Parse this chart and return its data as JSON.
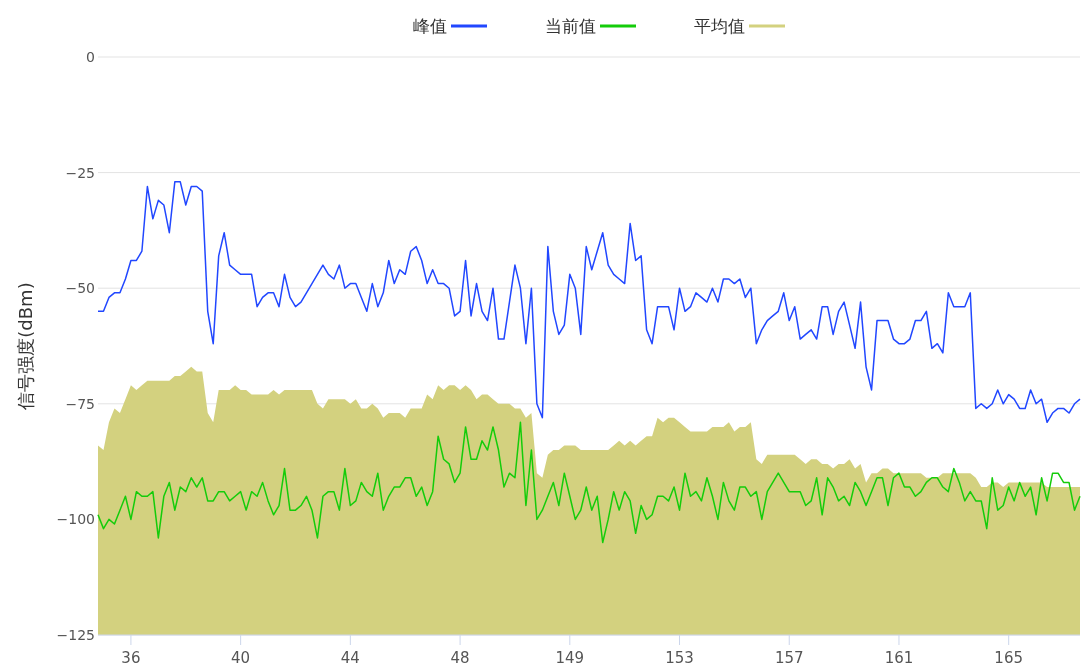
{
  "chart_data": {
    "type": "line",
    "ylabel": "信号强度(dBm)",
    "ylim": [
      -125,
      0
    ],
    "yticks": [
      -125,
      -100,
      -75,
      -50,
      -25,
      0
    ],
    "categories": [
      null,
      null,
      null,
      null,
      null,
      null,
      "36",
      null,
      null,
      null,
      null,
      null,
      null,
      null,
      null,
      null,
      null,
      null,
      null,
      null,
      null,
      null,
      null,
      null,
      null,
      null,
      "40",
      null,
      null,
      null,
      null,
      null,
      null,
      null,
      null,
      null,
      null,
      null,
      null,
      null,
      null,
      null,
      null,
      null,
      null,
      null,
      "44",
      null,
      null,
      null,
      null,
      null,
      null,
      null,
      null,
      null,
      null,
      null,
      null,
      null,
      null,
      null,
      null,
      null,
      null,
      null,
      "48",
      null,
      null,
      null,
      null,
      null,
      null,
      null,
      null,
      null,
      null,
      null,
      null,
      null,
      null,
      null,
      null,
      null,
      null,
      null,
      "149",
      null,
      null,
      null,
      null,
      null,
      null,
      null,
      null,
      null,
      null,
      null,
      null,
      null,
      null,
      null,
      null,
      null,
      null,
      null,
      "153",
      null,
      null,
      null,
      null,
      null,
      null,
      null,
      null,
      null,
      null,
      null,
      null,
      null,
      null,
      null,
      null,
      null,
      null,
      null,
      "157",
      null,
      null,
      null,
      null,
      null,
      null,
      null,
      null,
      null,
      null,
      null,
      null,
      null,
      null,
      null,
      null,
      null,
      null,
      null,
      "161",
      null,
      null,
      null,
      null,
      null,
      null,
      null,
      null,
      null,
      null,
      null,
      null,
      null,
      null,
      null,
      null,
      null,
      null,
      null,
      "165",
      null,
      null,
      null,
      null,
      null,
      null,
      null,
      null,
      null,
      null,
      null,
      null,
      null
    ],
    "grid": "y",
    "legend": "top",
    "series": [
      {
        "name": "峰值",
        "color": "#2147ff",
        "values": [
          -55,
          -55,
          -52,
          -51,
          -51,
          -48,
          -44,
          -44,
          -42,
          -28,
          -35,
          -31,
          -32,
          -38,
          -27,
          -27,
          -32,
          -28,
          -28,
          -29,
          -55,
          -62,
          -43,
          -38,
          -45,
          -46,
          -47,
          -47,
          -47,
          -54,
          -52,
          -51,
          -51,
          -54,
          -47,
          -52,
          -54,
          -53,
          -51,
          -49,
          -47,
          -45,
          -47,
          -48,
          -45,
          -50,
          -49,
          -49,
          -52,
          -55,
          -49,
          -54,
          -51,
          -44,
          -49,
          -46,
          -47,
          -42,
          -41,
          -44,
          -49,
          -46,
          -49,
          -49,
          -50,
          -56,
          -55,
          -44,
          -56,
          -49,
          -55,
          -57,
          -50,
          -61,
          -61,
          -53,
          -45,
          -50,
          -62,
          -50,
          -75,
          -78,
          -41,
          -55,
          -60,
          -58,
          -47,
          -50,
          -60,
          -41,
          -46,
          -42,
          -38,
          -45,
          -47,
          -48,
          -49,
          -36,
          -44,
          -43,
          -59,
          -62,
          -54,
          -54,
          -54,
          -59,
          -50,
          -55,
          -54,
          -51,
          -52,
          -53,
          -50,
          -53,
          -48,
          -48,
          -49,
          -48,
          -52,
          -50,
          -62,
          -59,
          -57,
          -56,
          -55,
          -51,
          -57,
          -54,
          -61,
          -60,
          -59,
          -61,
          -54,
          -54,
          -60,
          -55,
          -53,
          -58,
          -63,
          -53,
          -67,
          -72,
          -57,
          -57,
          -57,
          -61,
          -62,
          -62,
          -61,
          -57,
          -57,
          -55,
          -63,
          -62,
          -64,
          -51,
          -54,
          -54,
          -54,
          -51,
          -76,
          -75,
          -76,
          -75,
          -72,
          -75,
          -73,
          -74,
          -76,
          -76,
          -72,
          -75,
          -74,
          -79,
          -77,
          -76,
          -76,
          -77,
          -75,
          -74
        ]
      },
      {
        "name": "当前值",
        "color": "#14cc0a",
        "values": [
          -99,
          -102,
          -100,
          -101,
          -98,
          -95,
          -100,
          -94,
          -95,
          -95,
          -94,
          -104,
          -95,
          -92,
          -98,
          -93,
          -94,
          -91,
          -93,
          -91,
          -96,
          -96,
          -94,
          -94,
          -96,
          -95,
          -94,
          -98,
          -94,
          -95,
          -92,
          -96,
          -99,
          -97,
          -89,
          -98,
          -98,
          -97,
          -95,
          -98,
          -104,
          -95,
          -94,
          -94,
          -98,
          -89,
          -97,
          -96,
          -92,
          -94,
          -95,
          -90,
          -98,
          -95,
          -93,
          -93,
          -91,
          -91,
          -95,
          -93,
          -97,
          -94,
          -82,
          -87,
          -88,
          -92,
          -90,
          -80,
          -87,
          -87,
          -83,
          -85,
          -80,
          -85,
          -93,
          -90,
          -91,
          -79,
          -97,
          -85,
          -100,
          -98,
          -95,
          -92,
          -97,
          -90,
          -95,
          -100,
          -98,
          -93,
          -98,
          -95,
          -105,
          -100,
          -94,
          -98,
          -94,
          -96,
          -103,
          -97,
          -100,
          -99,
          -95,
          -95,
          -96,
          -93,
          -98,
          -90,
          -95,
          -94,
          -96,
          -91,
          -95,
          -100,
          -92,
          -96,
          -98,
          -93,
          -93,
          -95,
          -94,
          -100,
          -94,
          -92,
          -90,
          -92,
          -94,
          -94,
          -94,
          -97,
          -96,
          -91,
          -99,
          -91,
          -93,
          -96,
          -95,
          -97,
          -92,
          -94,
          -97,
          -94,
          -91,
          -91,
          -97,
          -91,
          -90,
          -93,
          -93,
          -95,
          -94,
          -92,
          -91,
          -91,
          -93,
          -94,
          -89,
          -92,
          -96,
          -94,
          -96,
          -96,
          -102,
          -91,
          -98,
          -97,
          -93,
          -96,
          -92,
          -95,
          -93,
          -99,
          -91,
          -96,
          -90,
          -90,
          -92,
          -92,
          -98,
          -95
        ]
      },
      {
        "name": "平均值",
        "color": "#d3d17f",
        "type": "area",
        "values": [
          -84,
          -85,
          -79,
          -76,
          -77,
          -74,
          -71,
          -72,
          -71,
          -70,
          -70,
          -70,
          -70,
          -70,
          -69,
          -69,
          -68,
          -67,
          -68,
          -68,
          -77,
          -79,
          -72,
          -72,
          -72,
          -71,
          -72,
          -72,
          -73,
          -73,
          -73,
          -73,
          -72,
          -73,
          -72,
          -72,
          -72,
          -72,
          -72,
          -72,
          -75,
          -76,
          -74,
          -74,
          -74,
          -74,
          -75,
          -74,
          -76,
          -76,
          -75,
          -76,
          -78,
          -77,
          -77,
          -77,
          -78,
          -76,
          -76,
          -76,
          -73,
          -74,
          -71,
          -72,
          -71,
          -71,
          -72,
          -71,
          -72,
          -74,
          -73,
          -73,
          -74,
          -75,
          -75,
          -75,
          -76,
          -76,
          -78,
          -77,
          -90,
          -91,
          -86,
          -85,
          -85,
          -84,
          -84,
          -84,
          -85,
          -85,
          -85,
          -85,
          -85,
          -85,
          -84,
          -83,
          -84,
          -83,
          -84,
          -83,
          -82,
          -82,
          -78,
          -79,
          -78,
          -78,
          -79,
          -80,
          -81,
          -81,
          -81,
          -81,
          -80,
          -80,
          -80,
          -79,
          -81,
          -80,
          -80,
          -79,
          -87,
          -88,
          -86,
          -86,
          -86,
          -86,
          -86,
          -86,
          -87,
          -88,
          -87,
          -87,
          -88,
          -88,
          -89,
          -88,
          -88,
          -87,
          -89,
          -88,
          -92,
          -90,
          -90,
          -89,
          -89,
          -90,
          -90,
          -90,
          -90,
          -90,
          -90,
          -91,
          -91,
          -91,
          -90,
          -90,
          -90,
          -90,
          -90,
          -90,
          -91,
          -93,
          -93,
          -92,
          -92,
          -93,
          -92,
          -92,
          -92,
          -92,
          -92,
          -92,
          -92,
          -93,
          -93,
          -93,
          -93,
          -93,
          -93,
          -93
        ]
      }
    ]
  }
}
